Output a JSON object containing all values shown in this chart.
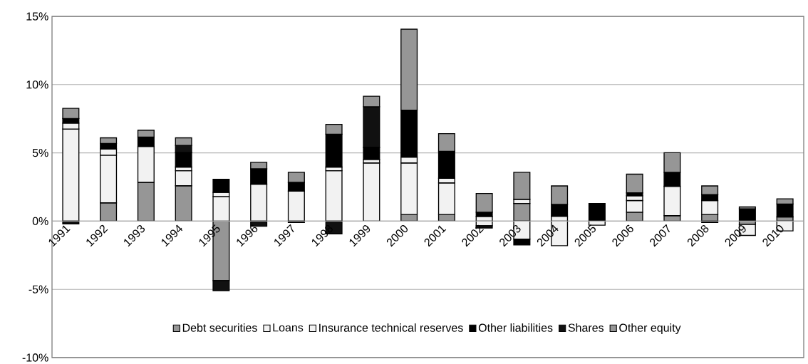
{
  "chart_data": {
    "type": "bar",
    "stacked": true,
    "categories": [
      "1991",
      "1992",
      "1993",
      "1994",
      "1995",
      "1996",
      "1997",
      "1998",
      "1999",
      "2000",
      "2001",
      "2002",
      "2003",
      "2004",
      "2005",
      "2006",
      "2007",
      "2008",
      "2009",
      "2010"
    ],
    "series": [
      {
        "name": "Debt securities",
        "color": "#969696",
        "values": [
          0,
          1.34,
          2.84,
          2.59,
          -4.36,
          0,
          0,
          0,
          0,
          0.48,
          0.48,
          0,
          1.29,
          0,
          0,
          0.65,
          0.4,
          0.48,
          -0.25,
          0.31
        ]
      },
      {
        "name": "Loans",
        "color": "#f2f2f2",
        "values": [
          6.75,
          3.49,
          2.63,
          1.1,
          1.8,
          2.71,
          2.2,
          3.69,
          4.26,
          3.78,
          2.32,
          -0.34,
          -1.32,
          -1.8,
          -0.3,
          0.86,
          2.15,
          1.03,
          -0.8,
          -0.72
        ]
      },
      {
        "name": "Insurance technical reserves",
        "color": "#f2f2f2",
        "values": [
          0.43,
          0.46,
          0,
          0.27,
          0.31,
          0,
          0,
          0.27,
          0.26,
          0.43,
          0.34,
          0.34,
          0.31,
          0.36,
          0,
          0.34,
          0,
          0,
          0,
          0
        ]
      },
      {
        "name": "Other liabilities",
        "color": "#000000",
        "values": [
          0.34,
          0.4,
          0.69,
          1.07,
          0.95,
          1.12,
          0.64,
          2.41,
          0.89,
          3.44,
          1.98,
          0.31,
          -0.43,
          0.86,
          1.29,
          0.22,
          1.03,
          0.43,
          0.9,
          0.94
        ]
      },
      {
        "name": "Shares",
        "color": "#111111",
        "values": [
          -0.2,
          0,
          0,
          0.52,
          -0.74,
          -0.38,
          -0.1,
          -0.93,
          2.97,
          0,
          0,
          -0.17,
          0,
          0,
          0,
          0,
          0,
          -0.1,
          0,
          0
        ]
      },
      {
        "name": "Other equity",
        "color": "#969696",
        "values": [
          0.74,
          0.41,
          0.5,
          0.55,
          0,
          0.48,
          0.74,
          0.72,
          0.77,
          5.93,
          1.29,
          1.37,
          1.98,
          1.36,
          0,
          1.37,
          1.43,
          0.64,
          0.14,
          0.38
        ]
      }
    ],
    "ylim": [
      -10,
      15
    ],
    "yticks": [
      {
        "value": -10,
        "label": "-10%"
      },
      {
        "value": -5,
        "label": "-5%"
      },
      {
        "value": 0,
        "label": "0%"
      },
      {
        "value": 5,
        "label": "5%"
      },
      {
        "value": 10,
        "label": "10%"
      },
      {
        "value": 15,
        "label": "15%"
      }
    ],
    "grid": "y",
    "legend": "bottom"
  }
}
